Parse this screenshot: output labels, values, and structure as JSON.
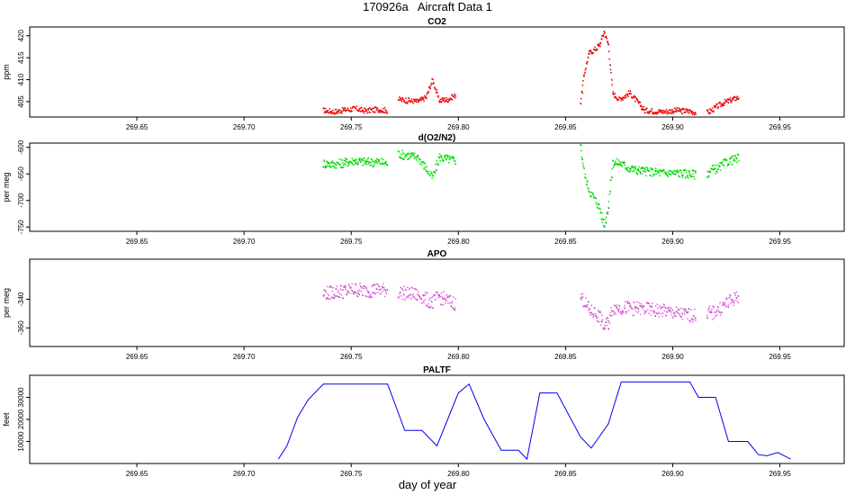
{
  "figure": {
    "title": "170926a   Aircraft Data 1",
    "xlabel": "day of year"
  },
  "chart_data": [
    {
      "type": "scatter",
      "title": "CO2",
      "ylabel": "ppm",
      "color": "#ff0000",
      "xlim": [
        269.6,
        269.98
      ],
      "ylim": [
        401.5,
        422
      ],
      "xticks": [
        "269.65",
        "269.70",
        "269.75",
        "269.80",
        "269.85",
        "269.90",
        "269.95"
      ],
      "yticks": [
        "405",
        "410",
        "415",
        "420"
      ],
      "series": [
        {
          "x": [
            269.737,
            269.742,
            269.747,
            269.752,
            269.757,
            269.762,
            269.767
          ],
          "y": [
            403,
            402.7,
            403.1,
            403.4,
            402.9,
            403.2,
            403
          ]
        },
        {
          "x": [
            269.772,
            269.776,
            269.781,
            269.785,
            269.788,
            269.791,
            269.795,
            269.799
          ],
          "y": [
            405.5,
            405.3,
            405,
            406,
            410,
            405.3,
            405.5,
            406.5
          ]
        },
        {
          "x": [
            269.857,
            269.859,
            269.861,
            269.864,
            269.866,
            269.868,
            269.87,
            269.872,
            269.875,
            269.88,
            269.887,
            269.895,
            269.902,
            269.908,
            269.911
          ],
          "y": [
            405,
            412,
            416,
            417,
            418,
            421,
            418,
            407,
            405.5,
            407,
            403,
            402.7,
            403,
            402.8,
            402.5
          ]
        },
        {
          "x": [
            269.916,
            269.918,
            269.921,
            269.925,
            269.931
          ],
          "y": [
            402.5,
            403,
            404,
            405,
            406
          ]
        }
      ]
    },
    {
      "type": "scatter",
      "title": "d(O2/N2)",
      "ylabel": "per meg",
      "color": "#00ee00",
      "xlim": [
        269.6,
        269.98
      ],
      "ylim": [
        -758,
        -592
      ],
      "xticks": [
        "269.65",
        "269.70",
        "269.75",
        "269.80",
        "269.85",
        "269.90",
        "269.95"
      ],
      "yticks": [
        "-600",
        "-650",
        "-700",
        "-750"
      ],
      "series": [
        {
          "x": [
            269.737,
            269.742,
            269.747,
            269.752,
            269.757,
            269.762,
            269.767
          ],
          "y": [
            -630,
            -632,
            -628,
            -625,
            -628,
            -627,
            -630
          ]
        },
        {
          "x": [
            269.772,
            269.776,
            269.781,
            269.785,
            269.788,
            269.791,
            269.795,
            269.799
          ],
          "y": [
            -612,
            -615,
            -618,
            -640,
            -658,
            -618,
            -622,
            -625
          ]
        },
        {
          "x": [
            269.857,
            269.859,
            269.861,
            269.864,
            269.866,
            269.868,
            269.87,
            269.872,
            269.875,
            269.88,
            269.887,
            269.895,
            269.902,
            269.908,
            269.911
          ],
          "y": [
            -600,
            -652,
            -680,
            -700,
            -715,
            -748,
            -710,
            -630,
            -628,
            -640,
            -645,
            -648,
            -648,
            -650,
            -652
          ]
        },
        {
          "x": [
            269.916,
            269.918,
            269.921,
            269.925,
            269.931
          ],
          "y": [
            -648,
            -642,
            -640,
            -628,
            -620
          ]
        }
      ]
    },
    {
      "type": "scatter",
      "title": "APO",
      "ylabel": "per meg",
      "color": "#ee66ee",
      "xlim": [
        269.6,
        269.98
      ],
      "ylim": [
        -373,
        -312
      ],
      "xticks": [
        "269.65",
        "269.70",
        "269.75",
        "269.80",
        "269.85",
        "269.90",
        "269.95"
      ],
      "yticks": [
        "-340",
        "-360"
      ],
      "series": [
        {
          "x": [
            269.737,
            269.742,
            269.747,
            269.752,
            269.757,
            269.762,
            269.767
          ],
          "y": [
            -336,
            -335,
            -334,
            -333,
            -334,
            -333,
            -334
          ]
        },
        {
          "x": [
            269.772,
            269.776,
            269.781,
            269.785,
            269.788,
            269.791,
            269.795,
            269.799
          ],
          "y": [
            -335,
            -336,
            -337,
            -340,
            -342,
            -338,
            -341,
            -343
          ]
        },
        {
          "x": [
            269.857,
            269.859,
            269.861,
            269.864,
            269.866,
            269.868,
            269.87,
            269.872,
            269.875,
            269.88,
            269.887,
            269.895,
            269.902,
            269.908,
            269.911
          ],
          "y": [
            -338,
            -342,
            -348,
            -350,
            -352,
            -360,
            -356,
            -346,
            -346,
            -346,
            -347,
            -348,
            -350,
            -351,
            -352
          ]
        },
        {
          "x": [
            269.916,
            269.918,
            269.921,
            269.925,
            269.931
          ],
          "y": [
            -349,
            -350,
            -348,
            -343,
            -338
          ]
        }
      ]
    },
    {
      "type": "line",
      "title": "PALTF",
      "ylabel": "feet",
      "color": "#0000ee",
      "xlim": [
        269.6,
        269.98
      ],
      "ylim": [
        0,
        40000
      ],
      "xticks": [
        "269.65",
        "269.70",
        "269.75",
        "269.80",
        "269.85",
        "269.90",
        "269.95"
      ],
      "yticks": [
        "10000",
        "20000",
        "30000"
      ],
      "series": [
        {
          "x": [
            269.716,
            269.72,
            269.725,
            269.73,
            269.737,
            269.745,
            269.755,
            269.767,
            269.775,
            269.783,
            269.79,
            269.795,
            269.8,
            269.805,
            269.812,
            269.82,
            269.828,
            269.832,
            269.838,
            269.846,
            269.857,
            269.862,
            269.87,
            269.876,
            269.884,
            269.895,
            269.908,
            269.912,
            269.92,
            269.926,
            269.935,
            269.94,
            269.944,
            269.949,
            269.955
          ],
          "y": [
            2000,
            8000,
            21000,
            29000,
            36000,
            36000,
            36000,
            36000,
            15000,
            15000,
            8000,
            20000,
            32000,
            36000,
            20000,
            6000,
            6000,
            2000,
            32000,
            32000,
            12000,
            7000,
            18000,
            37000,
            37000,
            37000,
            37000,
            30000,
            30000,
            10000,
            10000,
            4000,
            3500,
            5000,
            2000
          ]
        }
      ]
    }
  ]
}
